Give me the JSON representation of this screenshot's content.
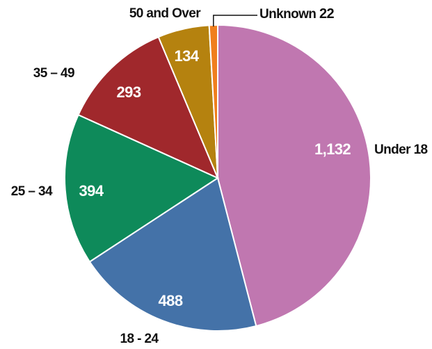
{
  "chart_data": {
    "type": "pie",
    "categories": [
      "Under 18",
      "18 - 24",
      "25 – 34",
      "35 – 49",
      "50 and Over",
      "Unknown"
    ],
    "values": [
      1132,
      488,
      394,
      293,
      134,
      22
    ],
    "value_labels": [
      "1,132",
      "488",
      "394",
      "293",
      "134",
      "22"
    ],
    "colors": [
      "#c077b0",
      "#4472a8",
      "#0e8a5a",
      "#a0282c",
      "#b5820f",
      "#f07f1e"
    ]
  }
}
